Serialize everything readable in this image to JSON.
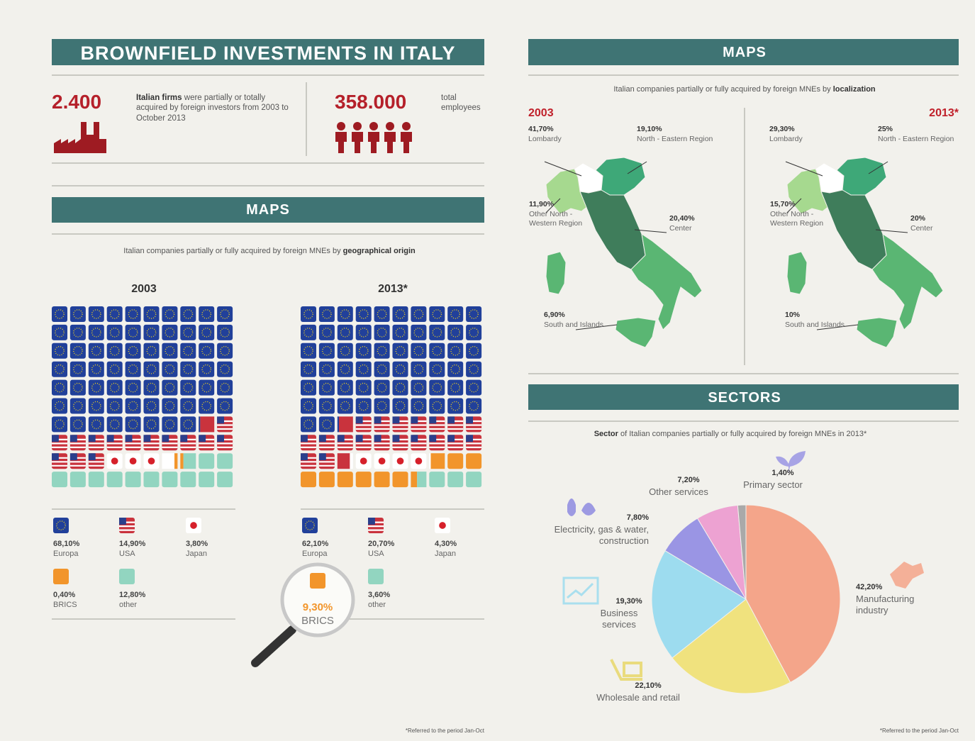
{
  "left": {
    "title": "BROWNFIELD INVESTMENTS IN ITALY",
    "stats": [
      {
        "value": "2.400",
        "bold": "Italian firms",
        "text": "were partially or totally acquired by foreign investors from 2003 to October 2013"
      },
      {
        "value": "358.000",
        "text": "total employees"
      }
    ],
    "maps_title": "MAPS",
    "subtitle": "Italian companies partially or fully acquired by foreign MNEs by",
    "subtitle_em": "geographical origin",
    "footnote": "*Referred to the period Jan-Oct"
  },
  "right": {
    "maps_title": "MAPS",
    "subtitle": "Italian companies partially or fully acquired by foreign MNEs by",
    "subtitle_em": "localization",
    "sectors_title": "SECTORS",
    "footnote": "*Referred to the period Jan-Oct"
  },
  "chart_data": [
    {
      "type": "waffle",
      "title": "2003",
      "categories": [
        "Europa",
        "USA",
        "Japan",
        "BRICS",
        "other"
      ],
      "values": [
        68.1,
        14.9,
        3.8,
        0.4,
        12.8
      ],
      "value_labels": [
        "68,10%",
        "14,90%",
        "3,80%",
        "0,40%",
        "12,80%"
      ],
      "colors": [
        "#21409a",
        "#c9333d",
        "#ffffff",
        "#f2952b",
        "#92d5c0"
      ]
    },
    {
      "type": "waffle",
      "title": "2013*",
      "categories": [
        "Europa",
        "USA",
        "Japan",
        "BRICS",
        "other"
      ],
      "values": [
        62.1,
        20.7,
        4.3,
        9.3,
        3.6
      ],
      "value_labels": [
        "62,10%",
        "20,70%",
        "4,30%",
        "9,30%",
        "3,60%"
      ],
      "colors": [
        "#21409a",
        "#c9333d",
        "#ffffff",
        "#f2952b",
        "#92d5c0"
      ]
    },
    {
      "type": "map",
      "title": "2003",
      "categories": [
        "Lombardy",
        "North - Eastern Region",
        "Other North - Western Region",
        "Center",
        "South and Islands"
      ],
      "values": [
        41.7,
        19.1,
        11.9,
        20.4,
        6.9
      ],
      "value_labels": [
        "41,70%",
        "19,10%",
        "11,90%",
        "20,40%",
        "6,90%"
      ],
      "colors": [
        "#ffffff",
        "#3ea878",
        "#a6d98f",
        "#3f7d5b",
        "#5ab673"
      ]
    },
    {
      "type": "map",
      "title": "2013*",
      "categories": [
        "Lombardy",
        "North - Eastern Region",
        "Other North - Western Region",
        "Center",
        "South and Islands"
      ],
      "values": [
        29.3,
        25,
        15.7,
        20,
        10
      ],
      "value_labels": [
        "29,30%",
        "25%",
        "15,70%",
        "20%",
        "10%"
      ],
      "colors": [
        "#ffffff",
        "#3ea878",
        "#a6d98f",
        "#3f7d5b",
        "#5ab673"
      ]
    },
    {
      "type": "pie",
      "title_em": "Sector",
      "title": "of Italian companies partially or fully acquired by foreign MNEs in 2013*",
      "categories": [
        "Manufacturing industry",
        "Wholesale and retail",
        "Business services",
        "Electricity, gas & water, construction",
        "Other services",
        "Primary sector"
      ],
      "values": [
        42.2,
        22.1,
        19.3,
        7.8,
        7.2,
        1.4
      ],
      "value_labels": [
        "42,20%",
        "22,10%",
        "19,30%",
        "7,80%",
        "7,20%",
        "1,40%"
      ],
      "colors": [
        "#f4a58a",
        "#f0e27e",
        "#9ddcef",
        "#9a95e4",
        "#eda2d2",
        "#a9a9a9"
      ]
    }
  ]
}
